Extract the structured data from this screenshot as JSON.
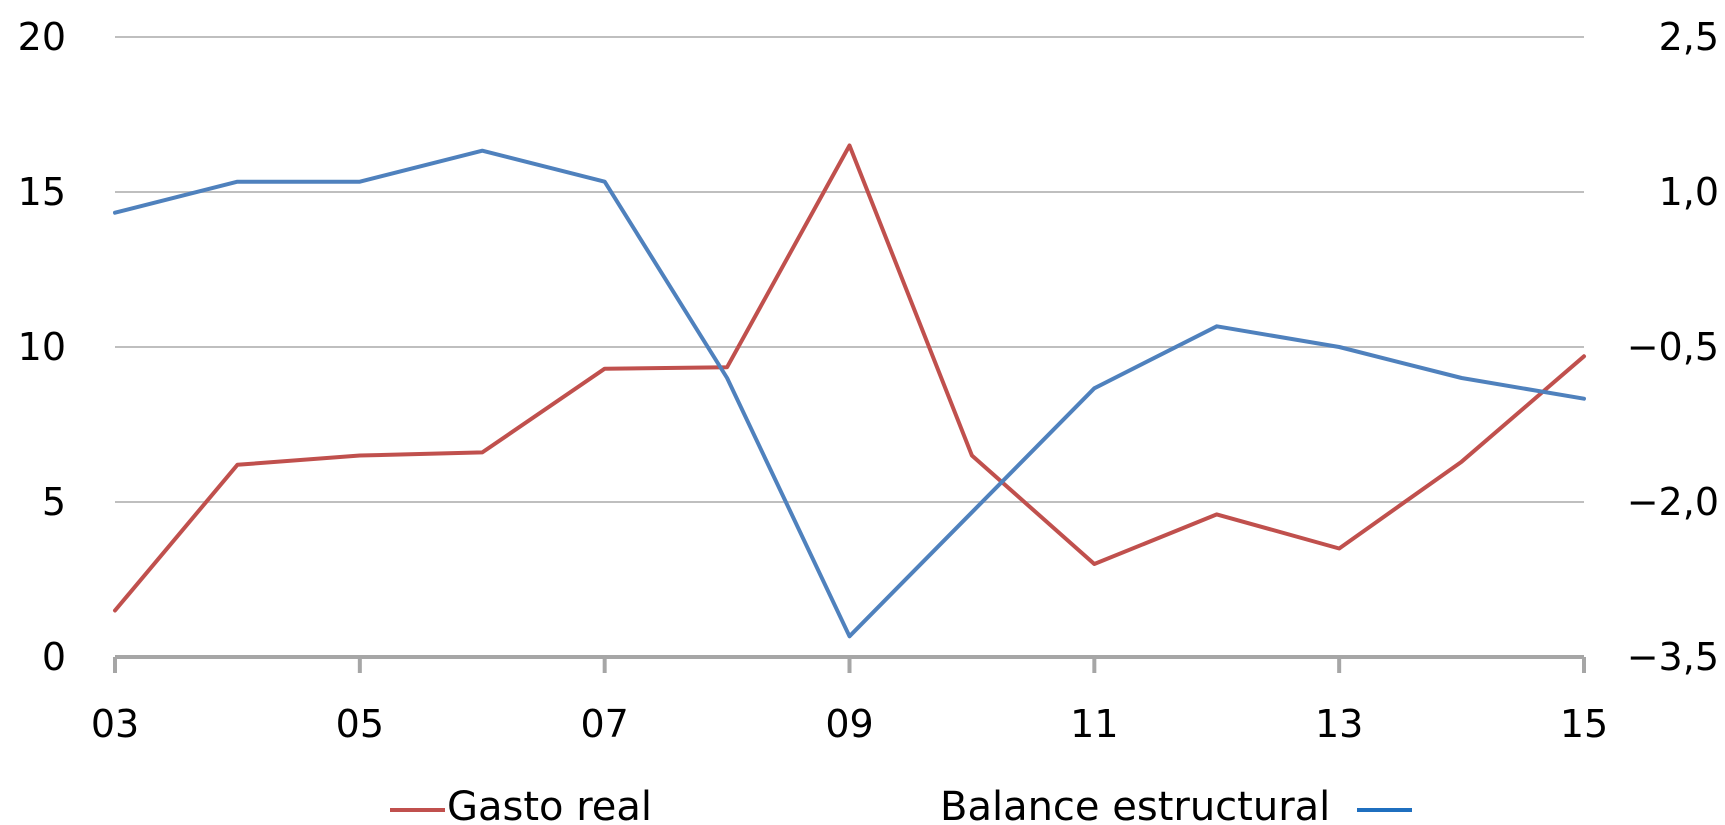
{
  "chart_data": {
    "type": "line",
    "title": "",
    "xlabel": "",
    "ylabel": "",
    "x": [
      2003,
      2004,
      2005,
      2006,
      2007,
      2008,
      2009,
      2010,
      2011,
      2012,
      2013,
      2014,
      2015
    ],
    "x_tick_labels": [
      "03",
      "05",
      "07",
      "09",
      "11",
      "13",
      "15"
    ],
    "x_tick_values": [
      2003,
      2005,
      2007,
      2009,
      2011,
      2013,
      2015
    ],
    "xlim": [
      2003,
      2015
    ],
    "left_axis": {
      "ylim": [
        0,
        20
      ],
      "ticks": [
        0,
        5,
        10,
        15,
        20
      ],
      "tick_labels": [
        "0",
        "5",
        "10",
        "15",
        "20"
      ]
    },
    "right_axis": {
      "ylim": [
        -3.5,
        2.5
      ],
      "ticks": [
        -3.5,
        -2.0,
        -0.5,
        1.0,
        2.5
      ],
      "tick_labels": [
        "−3,5",
        "−2,0",
        "−0,5",
        "1,0",
        "2,5"
      ]
    },
    "grid": true,
    "legend_position": "bottom",
    "series": [
      {
        "name": "Gasto real",
        "axis": "left",
        "color": "#c0504d",
        "values": [
          1.5,
          6.2,
          6.5,
          6.6,
          9.3,
          9.35,
          16.5,
          6.5,
          3.0,
          4.6,
          3.5,
          6.3,
          9.7
        ]
      },
      {
        "name": "Balance estructural",
        "axis": "right",
        "color": "#4f81bd",
        "legend_color": "#1f6fbf",
        "values": [
          0.8,
          1.1,
          1.1,
          1.4,
          1.1,
          -0.8,
          -3.3,
          -2.1,
          -0.9,
          -0.3,
          -0.5,
          -0.8,
          -1.0
        ]
      }
    ]
  }
}
